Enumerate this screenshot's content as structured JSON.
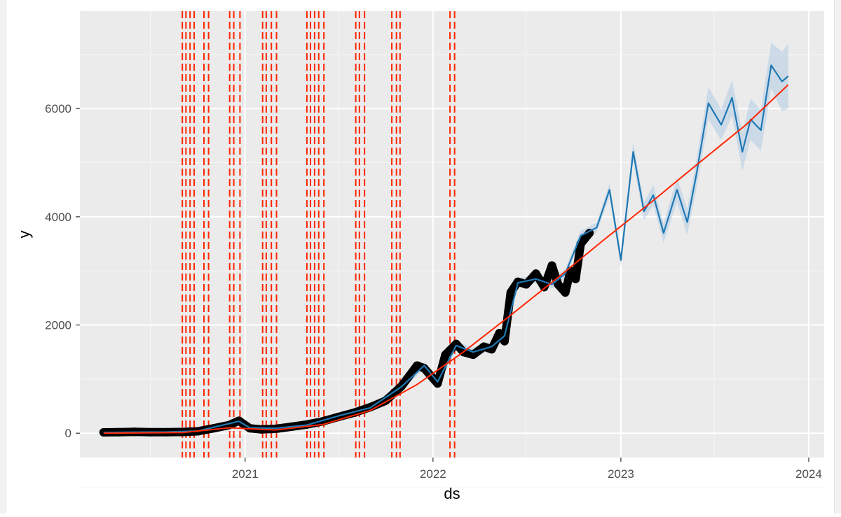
{
  "chart_data": {
    "type": "line",
    "xlabel": "ds",
    "ylabel": "y",
    "x_ticks": [
      "2021",
      "2022",
      "2023",
      "2024"
    ],
    "y_ticks": [
      "0",
      "2000",
      "4000",
      "6000"
    ],
    "xlim": [
      "2020-02-15",
      "2024-01-31"
    ],
    "ylim": [
      -450,
      7800
    ],
    "grid": true,
    "background": "#ebebeb",
    "changepoints": [
      "2020-09-01",
      "2020-09-08",
      "2020-09-16",
      "2020-09-24",
      "2020-10-13",
      "2020-10-22",
      "2020-12-02",
      "2020-12-10",
      "2020-12-22",
      "2021-02-04",
      "2021-02-11",
      "2021-02-21",
      "2021-03-03",
      "2021-05-01",
      "2021-05-08",
      "2021-05-16",
      "2021-05-24",
      "2021-06-03",
      "2021-08-04",
      "2021-08-11",
      "2021-08-21",
      "2021-10-13",
      "2021-10-22",
      "2021-10-29",
      "2022-02-03",
      "2022-02-12"
    ],
    "series": [
      {
        "kind": "observed",
        "color": "#000000",
        "x": [
          "2020-04-01",
          "2020-05-01",
          "2020-06-01",
          "2020-07-01",
          "2020-08-01",
          "2020-09-01",
          "2020-10-01",
          "2020-11-01",
          "2020-12-01",
          "2020-12-20",
          "2021-01-10",
          "2021-02-01",
          "2021-03-01",
          "2021-04-01",
          "2021-05-01",
          "2021-06-01",
          "2021-07-01",
          "2021-08-01",
          "2021-09-01",
          "2021-10-01",
          "2021-11-01",
          "2021-12-01",
          "2021-12-15",
          "2022-01-10",
          "2022-01-25",
          "2022-02-15",
          "2022-03-01",
          "2022-03-20",
          "2022-04-10",
          "2022-04-25",
          "2022-05-10",
          "2022-05-20",
          "2022-06-01",
          "2022-06-15",
          "2022-07-01",
          "2022-07-20",
          "2022-08-05",
          "2022-08-20",
          "2022-09-01",
          "2022-09-15",
          "2022-09-25",
          "2022-10-05",
          "2022-10-15",
          "2022-11-01"
        ],
        "values": [
          15,
          18,
          25,
          20,
          20,
          22,
          35,
          90,
          150,
          230,
          90,
          70,
          80,
          120,
          160,
          220,
          300,
          380,
          480,
          600,
          870,
          1250,
          1200,
          920,
          1450,
          1650,
          1500,
          1450,
          1600,
          1550,
          1850,
          1700,
          2600,
          2800,
          2750,
          2950,
          2700,
          3100,
          2750,
          2600,
          3000,
          2850,
          3500,
          3700
        ]
      },
      {
        "kind": "forecast",
        "color": "#1f78b4",
        "x": [
          "2020-04-01",
          "2020-06-01",
          "2020-08-01",
          "2020-10-01",
          "2020-12-20",
          "2021-01-10",
          "2021-03-01",
          "2021-05-01",
          "2021-07-01",
          "2021-09-01",
          "2021-11-01",
          "2021-12-15",
          "2022-01-10",
          "2022-02-15",
          "2022-03-20",
          "2022-04-25",
          "2022-05-20",
          "2022-06-15",
          "2022-07-20",
          "2022-08-20",
          "2022-09-15",
          "2022-10-15",
          "2022-11-15",
          "2022-12-10",
          "2023-01-01",
          "2023-01-25",
          "2023-02-15",
          "2023-03-05",
          "2023-03-25",
          "2023-04-20",
          "2023-05-10",
          "2023-05-28",
          "2023-06-20",
          "2023-07-15",
          "2023-08-05",
          "2023-08-25",
          "2023-09-10",
          "2023-09-30",
          "2023-10-20",
          "2023-11-10",
          "2023-11-22"
        ],
        "values": [
          10,
          20,
          22,
          40,
          220,
          100,
          90,
          150,
          320,
          470,
          860,
          1250,
          950,
          1620,
          1500,
          1600,
          1800,
          2780,
          2850,
          2750,
          2950,
          3650,
          3800,
          4500,
          3200,
          5200,
          4100,
          4400,
          3700,
          4500,
          3900,
          4800,
          6100,
          5700,
          6200,
          5200,
          5800,
          5600,
          6800,
          6500,
          6600
        ],
        "lower": [
          0,
          5,
          8,
          25,
          190,
          70,
          60,
          120,
          280,
          430,
          810,
          1180,
          880,
          1540,
          1420,
          1520,
          1720,
          2700,
          2770,
          2670,
          2860,
          3560,
          3710,
          4380,
          3080,
          5020,
          3940,
          4210,
          3520,
          4270,
          3660,
          4530,
          5800,
          5420,
          5870,
          4840,
          5420,
          5220,
          6380,
          5950,
          6000
        ],
        "upper": [
          40,
          45,
          50,
          70,
          260,
          140,
          130,
          190,
          360,
          520,
          920,
          1320,
          1020,
          1700,
          1580,
          1680,
          1880,
          2860,
          2930,
          2830,
          3040,
          3740,
          3890,
          4620,
          3320,
          5380,
          4260,
          4590,
          3880,
          4730,
          4140,
          5070,
          6400,
          5980,
          6530,
          5560,
          6180,
          5980,
          7220,
          7050,
          7200
        ]
      },
      {
        "kind": "trend",
        "color": "#ff2600",
        "x": [
          "2020-04-01",
          "2020-09-01",
          "2020-12-01",
          "2021-03-01",
          "2021-06-01",
          "2021-09-01",
          "2021-12-01",
          "2022-03-01",
          "2022-06-01",
          "2022-09-01",
          "2022-12-01",
          "2023-03-01",
          "2023-06-01",
          "2023-09-01",
          "2023-11-22"
        ],
        "values": [
          0,
          10,
          100,
          60,
          160,
          420,
          900,
          1500,
          2180,
          2880,
          3590,
          4270,
          4990,
          5700,
          6440
        ]
      }
    ]
  }
}
